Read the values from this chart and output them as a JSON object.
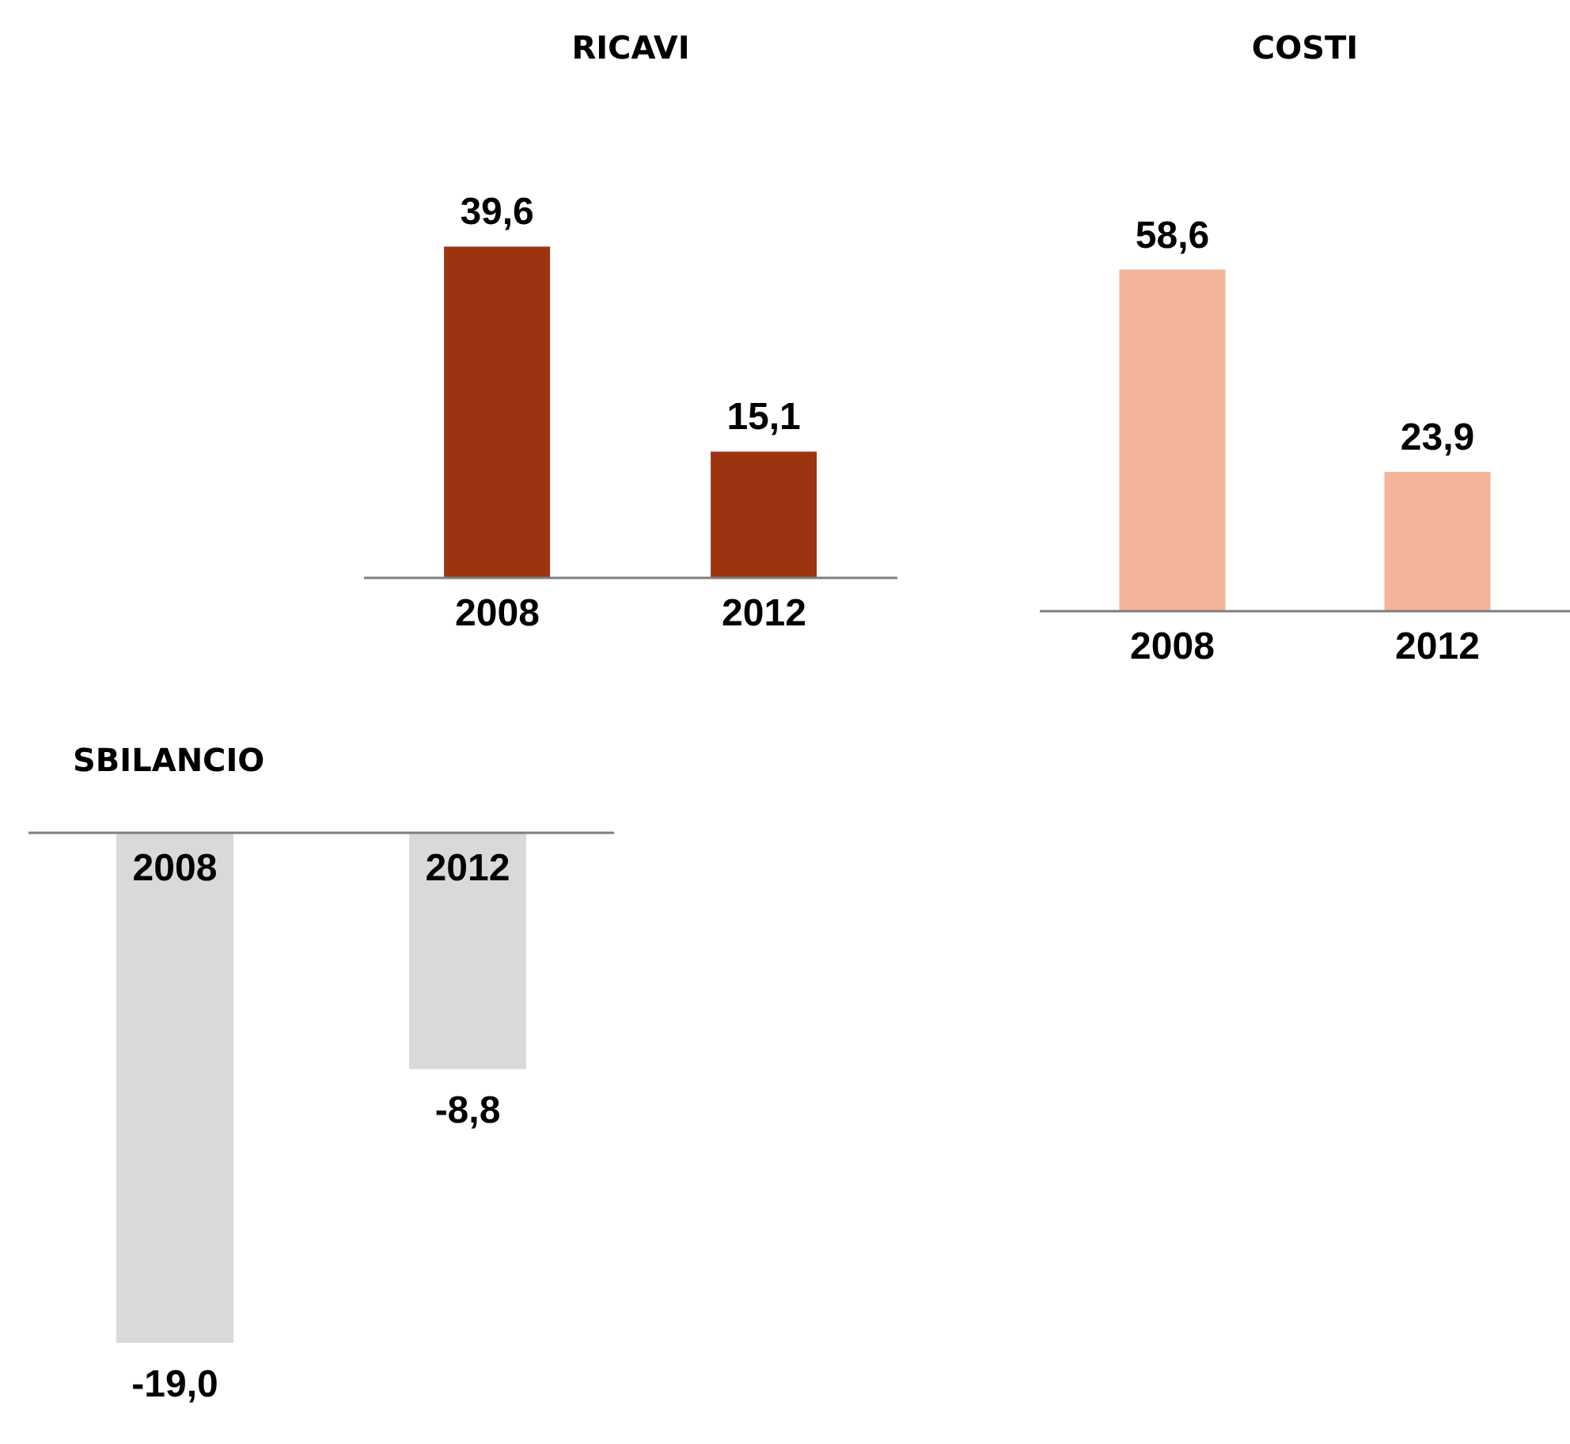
{
  "chart_data": [
    {
      "type": "bar",
      "title": "RICAVI",
      "categories": [
        "2008",
        "2012"
      ],
      "values": [
        39.6,
        15.1
      ],
      "value_labels": [
        "39,6",
        "15,1"
      ],
      "color": "#9c3412"
    },
    {
      "type": "bar",
      "title": "COSTI",
      "categories": [
        "2008",
        "2012"
      ],
      "values": [
        58.6,
        23.9
      ],
      "value_labels": [
        "58,6",
        "23,9"
      ],
      "color": "#f4b49a"
    },
    {
      "type": "bar",
      "title": "SBILANCIO",
      "categories": [
        "2008",
        "2012"
      ],
      "values": [
        -19.0,
        -8.8
      ],
      "value_labels": [
        "-19,0",
        "-8,8"
      ],
      "color": "#d9d9d9"
    }
  ]
}
